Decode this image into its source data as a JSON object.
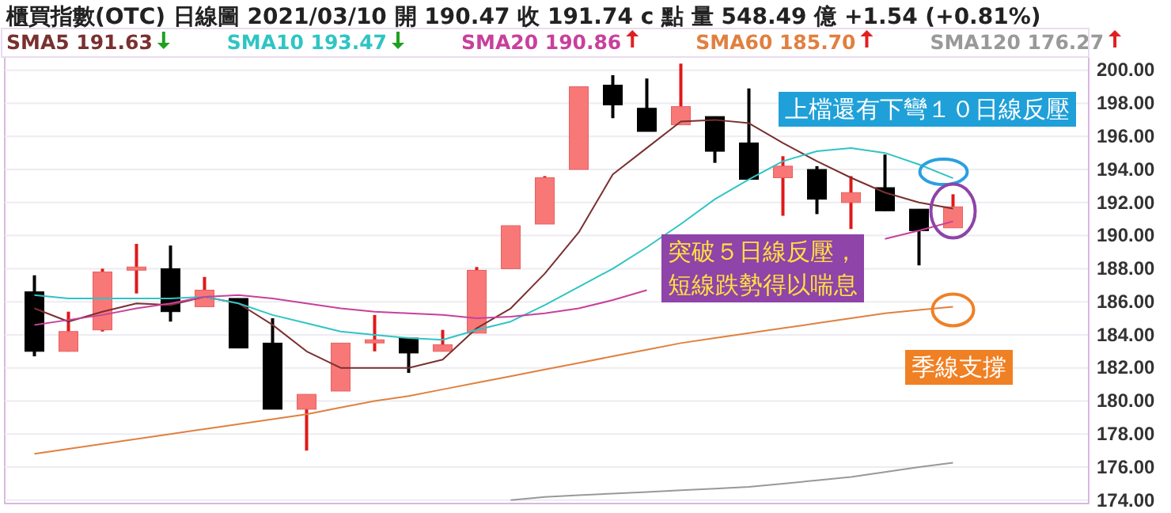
{
  "chart_data": {
    "type": "candlestick",
    "title": "櫃買指數(OTC)   日線圖   2021/03/10   開 190.47   收 191.74 c 點   量 548.49 億   +1.54 (+0.81%)",
    "categories": [
      null,
      null,
      null,
      null,
      null,
      null,
      null,
      null,
      null,
      null,
      null,
      null,
      null,
      null,
      null,
      null,
      null,
      null,
      null,
      null,
      null,
      null,
      null,
      null,
      null,
      null,
      null,
      null
    ],
    "ohlc": [
      [
        186.6,
        187.6,
        182.7,
        183.0
      ],
      [
        183.0,
        185.4,
        183.0,
        184.2
      ],
      [
        184.3,
        188.0,
        184.2,
        187.8
      ],
      [
        188.0,
        189.5,
        186.5,
        188.1
      ],
      [
        188.0,
        189.4,
        184.8,
        185.4
      ],
      [
        185.7,
        187.5,
        185.7,
        186.7
      ],
      [
        186.2,
        186.2,
        183.2,
        183.2
      ],
      [
        183.5,
        185.0,
        179.5,
        179.5
      ],
      [
        179.5,
        180.4,
        177.0,
        180.4
      ],
      [
        180.6,
        183.5,
        180.6,
        183.5
      ],
      [
        183.6,
        185.2,
        183.0,
        183.7
      ],
      [
        183.8,
        183.8,
        181.7,
        182.9
      ],
      [
        183.0,
        184.3,
        183.0,
        183.4
      ],
      [
        184.1,
        188.1,
        184.1,
        187.9
      ],
      [
        188.0,
        190.6,
        188.0,
        190.6
      ],
      [
        190.7,
        193.6,
        190.7,
        193.5
      ],
      [
        194.0,
        199.0,
        194.0,
        199.0
      ],
      [
        199.1,
        199.7,
        197.1,
        197.9
      ],
      [
        197.7,
        199.5,
        196.3,
        196.3
      ],
      [
        196.7,
        200.4,
        196.7,
        197.8
      ],
      [
        197.2,
        197.2,
        194.4,
        195.1
      ],
      [
        195.6,
        198.9,
        193.4,
        193.4
      ],
      [
        193.5,
        194.8,
        191.2,
        194.2
      ],
      [
        194.0,
        194.2,
        191.3,
        192.2
      ],
      [
        192.0,
        193.6,
        190.4,
        192.6
      ],
      [
        192.9,
        194.9,
        191.5,
        191.5
      ],
      [
        191.6,
        191.6,
        188.2,
        190.3
      ],
      [
        190.47,
        192.5,
        190.47,
        191.74
      ]
    ],
    "series": [
      {
        "name": "SMA5 191.63",
        "type": "line",
        "color": "#7a3030",
        "values": [
          185.6,
          184.8,
          185.4,
          185.9,
          185.8,
          186.3,
          185.9,
          184.6,
          183.0,
          182.0,
          182.0,
          182.0,
          182.5,
          184.4,
          185.6,
          187.7,
          190.2,
          193.7,
          195.3,
          196.9,
          197.0,
          196.8,
          195.6,
          194.5,
          193.5,
          192.6,
          192.0,
          191.63
        ]
      },
      {
        "name": "SMA10 193.47",
        "type": "line",
        "color": "#30c4c4",
        "values": [
          186.4,
          186.2,
          186.2,
          186.2,
          186.2,
          186.3,
          185.9,
          185.2,
          184.7,
          184.2,
          184.0,
          183.8,
          183.7,
          184.3,
          184.8,
          185.8,
          186.9,
          188.0,
          189.3,
          190.7,
          192.2,
          193.4,
          194.5,
          195.1,
          195.3,
          195.0,
          194.3,
          193.47
        ]
      },
      {
        "name": "SMA20 190.86",
        "type": "line",
        "color": "#c8409c",
        "values": [
          184.6,
          184.9,
          185.2,
          185.6,
          185.9,
          186.3,
          186.4,
          186.2,
          185.9,
          185.6,
          185.4,
          185.3,
          185.2,
          185.0,
          185.1,
          185.3,
          185.6,
          186.1,
          186.7,
          null,
          null,
          null,
          null,
          null,
          null,
          189.8,
          190.3,
          190.86
        ]
      },
      {
        "name": "SMA60 185.70",
        "type": "line",
        "color": "#e08040",
        "values": [
          176.8,
          177.1,
          177.4,
          177.7,
          178.0,
          178.3,
          178.6,
          178.9,
          179.2,
          179.6,
          180.0,
          180.3,
          180.7,
          181.1,
          181.5,
          181.9,
          182.3,
          182.7,
          183.1,
          183.5,
          183.8,
          184.1,
          184.4,
          184.7,
          185.0,
          185.3,
          185.5,
          185.7
        ]
      },
      {
        "name": "SMA120 176.27",
        "type": "line",
        "color": "#999999",
        "values": [
          null,
          null,
          null,
          null,
          null,
          null,
          null,
          null,
          null,
          null,
          null,
          null,
          null,
          null,
          174.0,
          174.2,
          174.3,
          174.4,
          174.5,
          174.6,
          174.7,
          174.8,
          175.0,
          175.2,
          175.4,
          175.7,
          176.0,
          176.27
        ]
      }
    ],
    "ylim": [
      173.8,
      200.8
    ],
    "yticks": [
      {
        "value": 174,
        "label": "174.00"
      },
      {
        "value": 176,
        "label": "176.00"
      },
      {
        "value": 178,
        "label": "178.00"
      },
      {
        "value": 180,
        "label": "180.00"
      },
      {
        "value": 182,
        "label": "182.00"
      },
      {
        "value": 184,
        "label": "184.00"
      },
      {
        "value": 186,
        "label": "186.00"
      },
      {
        "value": 188,
        "label": "188.00"
      },
      {
        "value": 190,
        "label": "190.00"
      },
      {
        "value": 192,
        "label": "192.00"
      },
      {
        "value": 194,
        "label": "194.00"
      },
      {
        "value": 196,
        "label": "196.00"
      },
      {
        "value": 198,
        "label": "198.00"
      },
      {
        "value": 200,
        "label": "200.00"
      }
    ],
    "tick_labels": "y",
    "grid": "y",
    "annotations": [
      "上檔還有下彎１０日線反壓",
      "突破５日線反壓，短線跌勢得以喘息",
      "季線支撐"
    ]
  }
}
